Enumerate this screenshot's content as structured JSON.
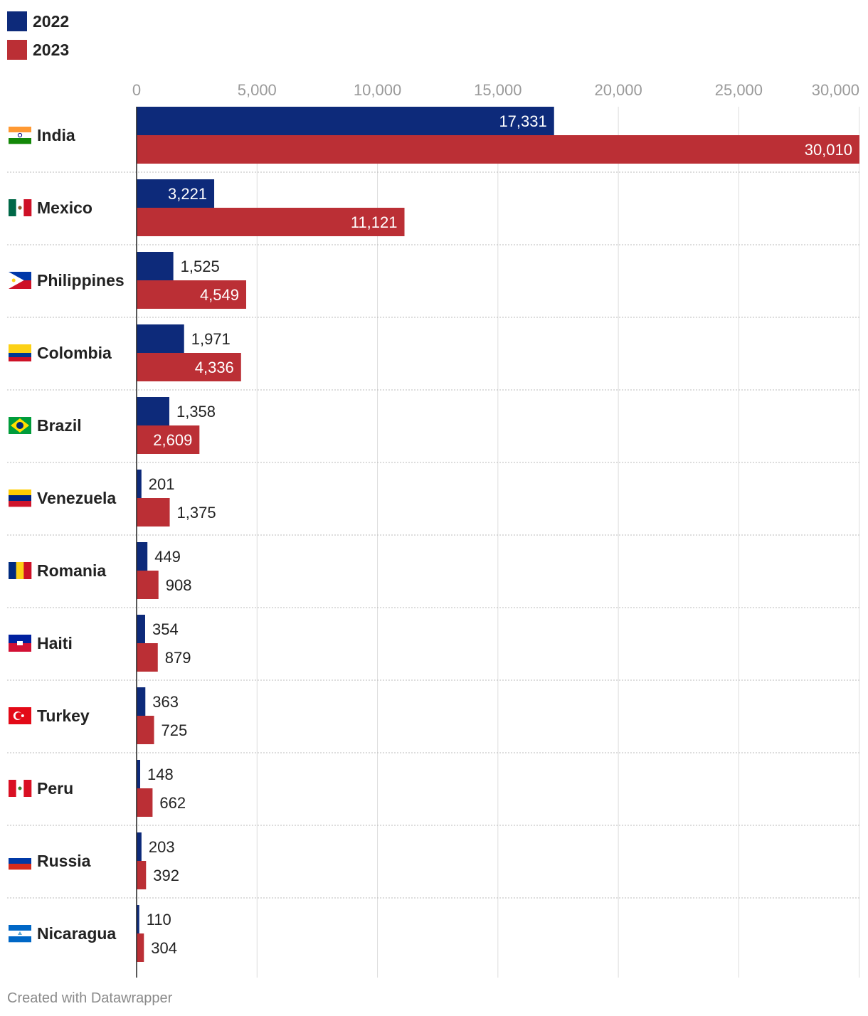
{
  "colors": {
    "series_2022": "#0d2a7a",
    "series_2023": "#bb2f35",
    "grid": "#dcdcdc",
    "separator": "#bbbbbb",
    "axis_text": "#9a9a9a"
  },
  "chart_data": {
    "type": "bar",
    "orientation": "horizontal",
    "categories": [
      "India",
      "Mexico",
      "Philippines",
      "Colombia",
      "Brazil",
      "Venezuela",
      "Romania",
      "Haiti",
      "Turkey",
      "Peru",
      "Russia",
      "Nicaragua"
    ],
    "flag_icons": [
      "india-flag-icon",
      "mexico-flag-icon",
      "philippines-flag-icon",
      "colombia-flag-icon",
      "brazil-flag-icon",
      "venezuela-flag-icon",
      "romania-flag-icon",
      "haiti-flag-icon",
      "turkey-flag-icon",
      "peru-flag-icon",
      "russia-flag-icon",
      "nicaragua-flag-icon"
    ],
    "series": [
      {
        "name": "2022",
        "values": [
          17331,
          3221,
          1525,
          1971,
          1358,
          201,
          449,
          354,
          363,
          148,
          203,
          110
        ]
      },
      {
        "name": "2023",
        "values": [
          30010,
          11121,
          4549,
          4336,
          2609,
          1375,
          908,
          879,
          725,
          662,
          392,
          304
        ]
      }
    ],
    "value_labels": [
      [
        "17,331",
        "3,221",
        "1,525",
        "1,971",
        "1,358",
        "201",
        "449",
        "354",
        "363",
        "148",
        "203",
        "110"
      ],
      [
        "30,010",
        "11,121",
        "4,549",
        "4,336",
        "2,609",
        "1,375",
        "908",
        "879",
        "725",
        "662",
        "392",
        "304"
      ]
    ],
    "x_ticks": [
      0,
      5000,
      10000,
      15000,
      20000,
      25000,
      30000
    ],
    "x_tick_labels": [
      "0",
      "5,000",
      "10,000",
      "15,000",
      "20,000",
      "25,000",
      "30,000"
    ],
    "xlim": [
      0,
      30010
    ],
    "legend_position": "top-left",
    "grid": true
  },
  "footer": {
    "credit": "Created with Datawrapper"
  }
}
